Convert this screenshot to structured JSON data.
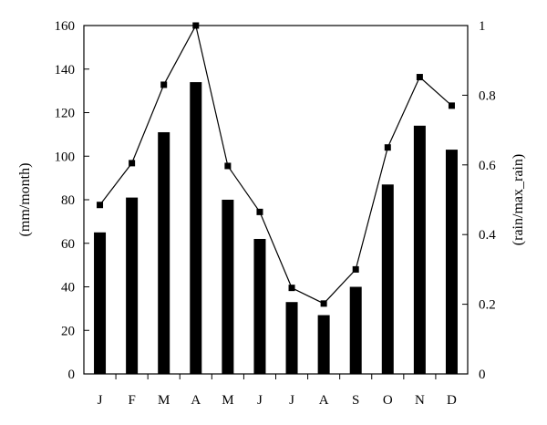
{
  "chart_data": {
    "type": "bar",
    "categories": [
      "J",
      "F",
      "M",
      "A",
      "M",
      "J",
      "J",
      "A",
      "S",
      "O",
      "N",
      "D"
    ],
    "series": [
      {
        "type": "bar",
        "axis": "left",
        "values": [
          65,
          81,
          111,
          134,
          80,
          62,
          33,
          27,
          40,
          87,
          114,
          103
        ]
      },
      {
        "type": "line",
        "axis": "right",
        "marker": "square",
        "values": [
          0.485,
          0.605,
          0.83,
          1.0,
          0.597,
          0.465,
          0.247,
          0.202,
          0.3,
          0.65,
          0.852,
          0.77
        ]
      }
    ],
    "ylabel": "(mm/month)",
    "y2label": "(rain/max_rain)",
    "ylim": [
      0,
      160
    ],
    "y2lim": [
      0,
      1
    ],
    "yticks": [
      0,
      20,
      40,
      60,
      80,
      100,
      120,
      140,
      160
    ],
    "y2ticks": [
      "0",
      "0.2",
      "0.4",
      "0.6",
      "0.8",
      "1"
    ],
    "grid": false,
    "colors": {
      "bars": "#000000",
      "line": "#000000"
    }
  }
}
